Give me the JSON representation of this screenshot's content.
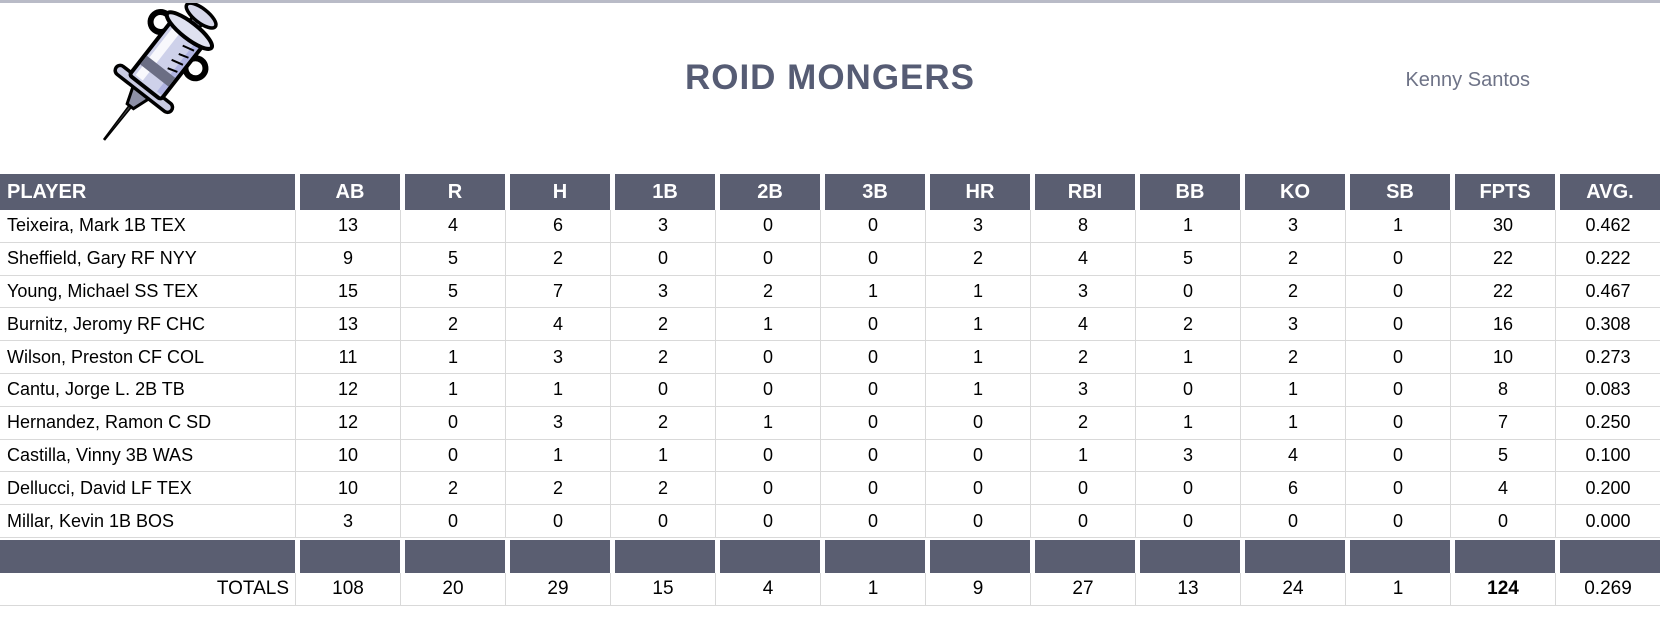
{
  "header": {
    "title": "ROID MONGERS",
    "owner": "Kenny Santos",
    "logo_icon": "syringe-icon"
  },
  "table": {
    "columns": [
      "PLAYER",
      "AB",
      "R",
      "H",
      "1B",
      "2B",
      "3B",
      "HR",
      "RBI",
      "BB",
      "KO",
      "SB",
      "FPTS",
      "AVG."
    ],
    "rows": [
      {
        "player": "Teixeira, Mark 1B TEX",
        "stats": [
          "13",
          "4",
          "6",
          "3",
          "0",
          "0",
          "3",
          "8",
          "1",
          "3",
          "1",
          "30",
          "0.462"
        ]
      },
      {
        "player": "Sheffield, Gary RF NYY",
        "stats": [
          "9",
          "5",
          "2",
          "0",
          "0",
          "0",
          "2",
          "4",
          "5",
          "2",
          "0",
          "22",
          "0.222"
        ]
      },
      {
        "player": "Young, Michael SS TEX",
        "stats": [
          "15",
          "5",
          "7",
          "3",
          "2",
          "1",
          "1",
          "3",
          "0",
          "2",
          "0",
          "22",
          "0.467"
        ]
      },
      {
        "player": "Burnitz, Jeromy RF CHC",
        "stats": [
          "13",
          "2",
          "4",
          "2",
          "1",
          "0",
          "1",
          "4",
          "2",
          "3",
          "0",
          "16",
          "0.308"
        ]
      },
      {
        "player": "Wilson, Preston CF COL",
        "stats": [
          "11",
          "1",
          "3",
          "2",
          "0",
          "0",
          "1",
          "2",
          "1",
          "2",
          "0",
          "10",
          "0.273"
        ]
      },
      {
        "player": "Cantu, Jorge L. 2B TB",
        "stats": [
          "12",
          "1",
          "1",
          "0",
          "0",
          "0",
          "1",
          "3",
          "0",
          "1",
          "0",
          "8",
          "0.083"
        ]
      },
      {
        "player": "Hernandez, Ramon C SD",
        "stats": [
          "12",
          "0",
          "3",
          "2",
          "1",
          "0",
          "0",
          "2",
          "1",
          "1",
          "0",
          "7",
          "0.250"
        ]
      },
      {
        "player": "Castilla, Vinny 3B WAS",
        "stats": [
          "10",
          "0",
          "1",
          "1",
          "0",
          "0",
          "0",
          "1",
          "3",
          "4",
          "0",
          "5",
          "0.100"
        ]
      },
      {
        "player": "Dellucci, David LF TEX",
        "stats": [
          "10",
          "2",
          "2",
          "2",
          "0",
          "0",
          "0",
          "0",
          "0",
          "6",
          "0",
          "4",
          "0.200"
        ]
      },
      {
        "player": "Millar, Kevin 1B BOS",
        "stats": [
          "3",
          "0",
          "0",
          "0",
          "0",
          "0",
          "0",
          "0",
          "0",
          "0",
          "0",
          "0",
          "0.000"
        ]
      }
    ],
    "totals": {
      "label": "TOTALS",
      "stats": [
        "108",
        "20",
        "29",
        "15",
        "4",
        "1",
        "9",
        "27",
        "13",
        "24",
        "1",
        "124",
        "0.269"
      ],
      "bold_stat_index": 11
    }
  },
  "colors": {
    "header_bg": "#5a5e71",
    "title_text": "#565c74",
    "owner_text": "#6e7387",
    "gridline": "#d9d9d9",
    "body_text": "#000000"
  }
}
